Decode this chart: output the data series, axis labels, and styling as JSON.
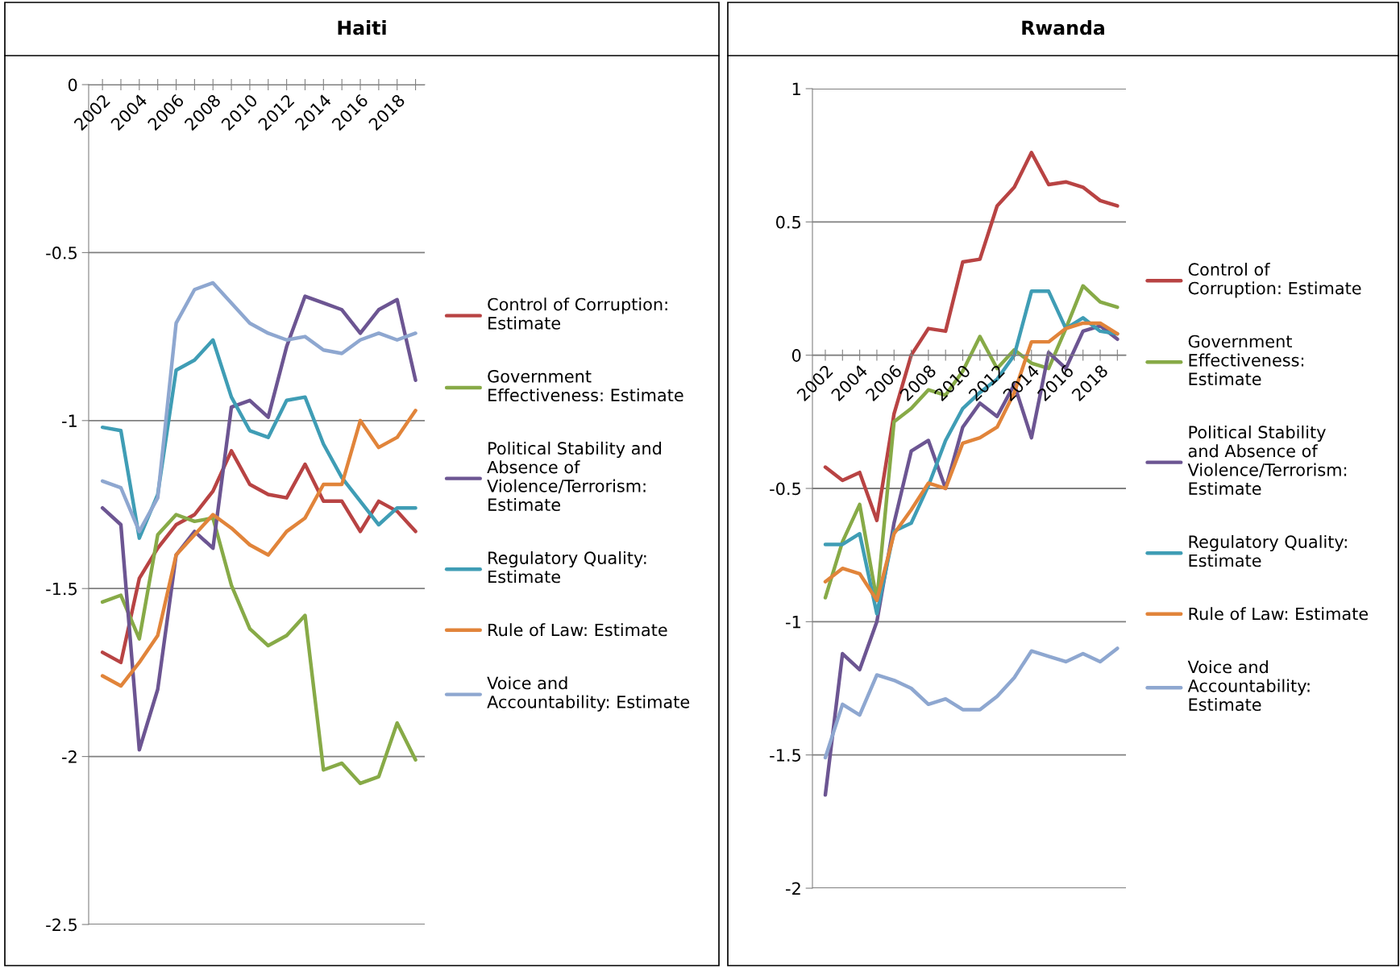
{
  "chart_data": [
    {
      "type": "line",
      "title": "Haiti",
      "categories": [
        "2002",
        null,
        "2004",
        null,
        "2006",
        null,
        "2008",
        null,
        "2010",
        null,
        "2012",
        null,
        "2014",
        null,
        "2016",
        null,
        "2018",
        null
      ],
      "ylim": [
        -2.5,
        0
      ],
      "yticks": [
        -2.5,
        -2,
        -1.5,
        -1,
        -0.5,
        0
      ],
      "grid": "y",
      "legend": "right",
      "marker": "none",
      "line_style": "solid",
      "series": [
        {
          "name": "Control of Corruption: Estimate",
          "color": "#b84343",
          "values": [
            -1.69,
            -1.72,
            -1.47,
            -1.38,
            -1.31,
            -1.28,
            -1.21,
            -1.09,
            -1.19,
            -1.22,
            -1.23,
            -1.13,
            -1.24,
            -1.24,
            -1.33,
            -1.24,
            -1.27,
            -1.33
          ]
        },
        {
          "name": "Government Effectiveness: Estimate",
          "color": "#87aa47",
          "values": [
            -1.54,
            -1.52,
            -1.65,
            -1.34,
            -1.28,
            -1.3,
            -1.29,
            -1.49,
            -1.62,
            -1.67,
            -1.64,
            -1.58,
            -2.04,
            -2.02,
            -2.08,
            -2.06,
            -1.9,
            -2.01
          ]
        },
        {
          "name": "Political Stability and Absence of Violence/Terrorism: Estimate",
          "color": "#6c5592",
          "values": [
            -1.26,
            -1.31,
            -1.98,
            -1.8,
            -1.4,
            -1.33,
            -1.38,
            -0.96,
            -0.94,
            -0.99,
            -0.78,
            -0.63,
            -0.65,
            -0.67,
            -0.74,
            -0.67,
            -0.64,
            -0.88
          ]
        },
        {
          "name": "Regulatory Quality: Estimate",
          "color": "#3f9db5",
          "values": [
            -1.02,
            -1.03,
            -1.35,
            -1.22,
            -0.85,
            -0.82,
            -0.76,
            -0.93,
            -1.03,
            -1.05,
            -0.94,
            -0.93,
            -1.07,
            -1.17,
            -1.24,
            -1.31,
            -1.26,
            -1.26
          ]
        },
        {
          "name": "Rule of Law: Estimate",
          "color": "#e1843a",
          "values": [
            -1.76,
            -1.79,
            -1.72,
            -1.64,
            -1.4,
            -1.34,
            -1.28,
            -1.32,
            -1.37,
            -1.4,
            -1.33,
            -1.29,
            -1.19,
            -1.19,
            -1.0,
            -1.08,
            -1.05,
            -0.97
          ]
        },
        {
          "name": "Voice and Accountability: Estimate",
          "color": "#8ea7d0",
          "values": [
            -1.18,
            -1.2,
            -1.33,
            -1.23,
            -0.71,
            -0.61,
            -0.59,
            -0.65,
            -0.71,
            -0.74,
            -0.76,
            -0.75,
            -0.79,
            -0.8,
            -0.76,
            -0.74,
            -0.76,
            -0.74
          ]
        }
      ]
    },
    {
      "type": "line",
      "title": "Rwanda",
      "categories": [
        "2002",
        null,
        "2004",
        null,
        "2006",
        null,
        "2008",
        null,
        "2010",
        null,
        "2012",
        null,
        "2014",
        null,
        "2016",
        null,
        "2018",
        null
      ],
      "ylim": [
        -2,
        1
      ],
      "yticks": [
        -2,
        -1.5,
        -1,
        -0.5,
        0,
        0.5,
        1
      ],
      "grid": "y",
      "legend": "right",
      "marker": "none",
      "line_style": "solid",
      "series": [
        {
          "name": "Control of Corruption: Estimate",
          "color": "#b84343",
          "values": [
            -0.42,
            -0.47,
            -0.44,
            -0.62,
            -0.22,
            0.0,
            0.1,
            0.09,
            0.35,
            0.36,
            0.56,
            0.63,
            0.76,
            0.64,
            0.65,
            0.63,
            0.58,
            0.56
          ]
        },
        {
          "name": "Government Effectiveness: Estimate",
          "color": "#87aa47",
          "values": [
            -0.91,
            -0.7,
            -0.56,
            -0.92,
            -0.25,
            -0.2,
            -0.13,
            -0.15,
            -0.06,
            0.07,
            -0.05,
            0.02,
            -0.03,
            -0.05,
            0.1,
            0.26,
            0.2,
            0.18
          ]
        },
        {
          "name": "Political Stability and Absence of Violence/Terrorism: Estimate",
          "color": "#6c5592",
          "values": [
            -1.65,
            -1.12,
            -1.18,
            -1.0,
            -0.63,
            -0.36,
            -0.32,
            -0.5,
            -0.27,
            -0.18,
            -0.23,
            -0.11,
            -0.31,
            0.01,
            -0.05,
            0.09,
            0.11,
            0.06
          ]
        },
        {
          "name": "Regulatory Quality: Estimate",
          "color": "#3f9db5",
          "values": [
            -0.71,
            -0.71,
            -0.67,
            -0.97,
            -0.66,
            -0.63,
            -0.49,
            -0.32,
            -0.2,
            -0.14,
            -0.09,
            0.0,
            0.24,
            0.24,
            0.1,
            0.14,
            0.09,
            0.08
          ]
        },
        {
          "name": "Rule of Law: Estimate",
          "color": "#e1843a",
          "values": [
            -0.85,
            -0.8,
            -0.82,
            -0.92,
            -0.67,
            -0.58,
            -0.48,
            -0.5,
            -0.33,
            -0.31,
            -0.27,
            -0.14,
            0.05,
            0.05,
            0.1,
            0.12,
            0.12,
            0.08
          ]
        },
        {
          "name": "Voice and Accountability: Estimate",
          "color": "#8ea7d0",
          "values": [
            -1.51,
            -1.31,
            -1.35,
            -1.2,
            -1.22,
            -1.25,
            -1.31,
            -1.29,
            -1.33,
            -1.33,
            -1.28,
            -1.21,
            -1.11,
            -1.13,
            -1.15,
            -1.12,
            -1.15,
            -1.1
          ]
        }
      ]
    }
  ]
}
